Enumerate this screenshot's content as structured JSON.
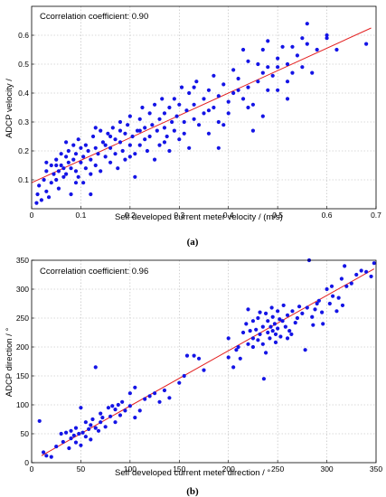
{
  "colors": {
    "points": "#1414e6",
    "fit_line": "#e32020",
    "grid": "#b5b5b5"
  },
  "chart_data": [
    {
      "type": "scatter",
      "panel_label": "(a)",
      "annotation": "Ccorrelation coefficient",
      "annotation_value": ": 0.90",
      "xlabel": "Self developed current meter velocity / (m/s)",
      "ylabel": "ADCP velocity  /",
      "xlim": [
        0,
        0.7
      ],
      "ylim": [
        0,
        0.7
      ],
      "xticks": [
        0,
        0.1,
        0.2,
        0.3,
        0.4,
        0.5,
        0.6,
        0.7
      ],
      "yticks": [
        0.1,
        0.2,
        0.3,
        0.4,
        0.5,
        0.6
      ],
      "xtick_labels": [
        "0",
        "0.1",
        "0.2",
        "0.3",
        "0.4",
        "0.5",
        "0.6",
        "0.7"
      ],
      "ytick_labels": [
        "0.1",
        "0.2",
        "0.3",
        "0.4",
        "0.5",
        "0.6"
      ],
      "grid": true,
      "fit_line": {
        "x": [
          0.0,
          0.69
        ],
        "y": [
          0.09,
          0.625
        ]
      },
      "points": [
        [
          0.01,
          0.02
        ],
        [
          0.012,
          0.05
        ],
        [
          0.015,
          0.08
        ],
        [
          0.02,
          0.03
        ],
        [
          0.025,
          0.1
        ],
        [
          0.03,
          0.06
        ],
        [
          0.03,
          0.13
        ],
        [
          0.035,
          0.04
        ],
        [
          0.04,
          0.09
        ],
        [
          0.04,
          0.15
        ],
        [
          0.045,
          0.12
        ],
        [
          0.05,
          0.1
        ],
        [
          0.05,
          0.17
        ],
        [
          0.055,
          0.13
        ],
        [
          0.055,
          0.07
        ],
        [
          0.06,
          0.15
        ],
        [
          0.06,
          0.19
        ],
        [
          0.065,
          0.11
        ],
        [
          0.065,
          0.14
        ],
        [
          0.07,
          0.18
        ],
        [
          0.07,
          0.12
        ],
        [
          0.075,
          0.16
        ],
        [
          0.075,
          0.2
        ],
        [
          0.08,
          0.05
        ],
        [
          0.08,
          0.14
        ],
        [
          0.085,
          0.22
        ],
        [
          0.085,
          0.17
        ],
        [
          0.09,
          0.13
        ],
        [
          0.09,
          0.19
        ],
        [
          0.095,
          0.11
        ],
        [
          0.095,
          0.24
        ],
        [
          0.1,
          0.16
        ],
        [
          0.1,
          0.21
        ],
        [
          0.105,
          0.09
        ],
        [
          0.105,
          0.18
        ],
        [
          0.11,
          0.14
        ],
        [
          0.11,
          0.22
        ],
        [
          0.115,
          0.2
        ],
        [
          0.12,
          0.12
        ],
        [
          0.12,
          0.17
        ],
        [
          0.125,
          0.25
        ],
        [
          0.13,
          0.15
        ],
        [
          0.13,
          0.21
        ],
        [
          0.135,
          0.19
        ],
        [
          0.14,
          0.27
        ],
        [
          0.14,
          0.13
        ],
        [
          0.145,
          0.23
        ],
        [
          0.15,
          0.18
        ],
        [
          0.15,
          0.22
        ],
        [
          0.155,
          0.26
        ],
        [
          0.16,
          0.16
        ],
        [
          0.16,
          0.21
        ],
        [
          0.165,
          0.28
        ],
        [
          0.17,
          0.19
        ],
        [
          0.17,
          0.24
        ],
        [
          0.175,
          0.14
        ],
        [
          0.18,
          0.23
        ],
        [
          0.18,
          0.3
        ],
        [
          0.185,
          0.2
        ],
        [
          0.19,
          0.26
        ],
        [
          0.19,
          0.17
        ],
        [
          0.195,
          0.29
        ],
        [
          0.2,
          0.22
        ],
        [
          0.2,
          0.32
        ],
        [
          0.205,
          0.25
        ],
        [
          0.21,
          0.11
        ],
        [
          0.21,
          0.19
        ],
        [
          0.215,
          0.27
        ],
        [
          0.22,
          0.31
        ],
        [
          0.22,
          0.22
        ],
        [
          0.225,
          0.35
        ],
        [
          0.23,
          0.24
        ],
        [
          0.23,
          0.28
        ],
        [
          0.235,
          0.2
        ],
        [
          0.24,
          0.33
        ],
        [
          0.24,
          0.25
        ],
        [
          0.245,
          0.29
        ],
        [
          0.25,
          0.17
        ],
        [
          0.25,
          0.36
        ],
        [
          0.255,
          0.27
        ],
        [
          0.26,
          0.31
        ],
        [
          0.26,
          0.22
        ],
        [
          0.265,
          0.38
        ],
        [
          0.27,
          0.28
        ],
        [
          0.27,
          0.33
        ],
        [
          0.275,
          0.25
        ],
        [
          0.28,
          0.35
        ],
        [
          0.28,
          0.2
        ],
        [
          0.285,
          0.3
        ],
        [
          0.29,
          0.27
        ],
        [
          0.29,
          0.38
        ],
        [
          0.295,
          0.32
        ],
        [
          0.3,
          0.24
        ],
        [
          0.3,
          0.36
        ],
        [
          0.305,
          0.42
        ],
        [
          0.31,
          0.3
        ],
        [
          0.31,
          0.26
        ],
        [
          0.315,
          0.34
        ],
        [
          0.32,
          0.21
        ],
        [
          0.32,
          0.4
        ],
        [
          0.33,
          0.31
        ],
        [
          0.33,
          0.36
        ],
        [
          0.335,
          0.44
        ],
        [
          0.34,
          0.29
        ],
        [
          0.35,
          0.38
        ],
        [
          0.35,
          0.33
        ],
        [
          0.36,
          0.41
        ],
        [
          0.36,
          0.26
        ],
        [
          0.37,
          0.35
        ],
        [
          0.37,
          0.46
        ],
        [
          0.38,
          0.3
        ],
        [
          0.38,
          0.39
        ],
        [
          0.39,
          0.43
        ],
        [
          0.39,
          0.29
        ],
        [
          0.4,
          0.37
        ],
        [
          0.4,
          0.33
        ],
        [
          0.41,
          0.48
        ],
        [
          0.41,
          0.4
        ],
        [
          0.42,
          0.45
        ],
        [
          0.43,
          0.38
        ],
        [
          0.44,
          0.51
        ],
        [
          0.44,
          0.42
        ],
        [
          0.45,
          0.36
        ],
        [
          0.46,
          0.5
        ],
        [
          0.46,
          0.44
        ],
        [
          0.47,
          0.55
        ],
        [
          0.47,
          0.47
        ],
        [
          0.48,
          0.41
        ],
        [
          0.48,
          0.58
        ],
        [
          0.49,
          0.46
        ],
        [
          0.5,
          0.52
        ],
        [
          0.5,
          0.49
        ],
        [
          0.51,
          0.56
        ],
        [
          0.52,
          0.44
        ],
        [
          0.52,
          0.5
        ],
        [
          0.53,
          0.56
        ],
        [
          0.54,
          0.53
        ],
        [
          0.55,
          0.49
        ],
        [
          0.56,
          0.64
        ],
        [
          0.56,
          0.57
        ],
        [
          0.58,
          0.55
        ],
        [
          0.6,
          0.59
        ],
        [
          0.68,
          0.57
        ],
        [
          0.38,
          0.21
        ],
        [
          0.45,
          0.27
        ],
        [
          0.47,
          0.32
        ],
        [
          0.5,
          0.41
        ],
        [
          0.52,
          0.38
        ],
        [
          0.6,
          0.6
        ],
        [
          0.12,
          0.05
        ],
        [
          0.05,
          0.15
        ],
        [
          0.03,
          0.16
        ],
        [
          0.07,
          0.23
        ],
        [
          0.09,
          0.09
        ],
        [
          0.13,
          0.28
        ],
        [
          0.16,
          0.25
        ],
        [
          0.18,
          0.27
        ],
        [
          0.2,
          0.18
        ],
        [
          0.22,
          0.27
        ],
        [
          0.27,
          0.23
        ],
        [
          0.33,
          0.42
        ],
        [
          0.36,
          0.34
        ],
        [
          0.42,
          0.41
        ],
        [
          0.44,
          0.35
        ],
        [
          0.48,
          0.49
        ],
        [
          0.53,
          0.47
        ],
        [
          0.55,
          0.59
        ],
        [
          0.43,
          0.55
        ],
        [
          0.57,
          0.47
        ],
        [
          0.62,
          0.55
        ]
      ]
    },
    {
      "type": "scatter",
      "panel_label": "(b)",
      "annotation": "Ccorrelation coefficient",
      "annotation_value": ": 0.96",
      "xlabel": "Self developed current meter direction / °",
      "ylabel": "ADCP direction / °",
      "xlim": [
        0,
        350
      ],
      "ylim": [
        0,
        350
      ],
      "xticks": [
        0,
        50,
        100,
        150,
        200,
        250,
        300,
        350
      ],
      "yticks": [
        0,
        50,
        100,
        150,
        200,
        250,
        300,
        350
      ],
      "xtick_labels": [
        "0",
        "50",
        "100",
        "150",
        "200",
        "250",
        "300",
        "350"
      ],
      "ytick_labels": [
        "0",
        "50",
        "100",
        "150",
        "200",
        "250",
        "300",
        "350"
      ],
      "grid": true,
      "fit_line": {
        "x": [
          10,
          348
        ],
        "y": [
          12,
          335
        ]
      },
      "points": [
        [
          8,
          72
        ],
        [
          12,
          18
        ],
        [
          15,
          12
        ],
        [
          20,
          10
        ],
        [
          25,
          28
        ],
        [
          30,
          50
        ],
        [
          32,
          36
        ],
        [
          35,
          52
        ],
        [
          38,
          25
        ],
        [
          40,
          55
        ],
        [
          40,
          42
        ],
        [
          43,
          47
        ],
        [
          45,
          35
        ],
        [
          45,
          60
        ],
        [
          48,
          50
        ],
        [
          50,
          30
        ],
        [
          50,
          95
        ],
        [
          52,
          52
        ],
        [
          55,
          45
        ],
        [
          55,
          70
        ],
        [
          58,
          58
        ],
        [
          60,
          65
        ],
        [
          60,
          40
        ],
        [
          62,
          75
        ],
        [
          65,
          60
        ],
        [
          65,
          165
        ],
        [
          68,
          55
        ],
        [
          70,
          70
        ],
        [
          70,
          85
        ],
        [
          72,
          78
        ],
        [
          75,
          62
        ],
        [
          78,
          95
        ],
        [
          80,
          80
        ],
        [
          82,
          98
        ],
        [
          85,
          92
        ],
        [
          85,
          70
        ],
        [
          88,
          100
        ],
        [
          90,
          82
        ],
        [
          92,
          105
        ],
        [
          95,
          90
        ],
        [
          100,
          98
        ],
        [
          100,
          120
        ],
        [
          105,
          130
        ],
        [
          105,
          78
        ],
        [
          110,
          90
        ],
        [
          115,
          110
        ],
        [
          120,
          115
        ],
        [
          125,
          120
        ],
        [
          130,
          105
        ],
        [
          135,
          125
        ],
        [
          140,
          112
        ],
        [
          150,
          138
        ],
        [
          155,
          150
        ],
        [
          158,
          185
        ],
        [
          165,
          185
        ],
        [
          170,
          180
        ],
        [
          175,
          160
        ],
        [
          200,
          215
        ],
        [
          200,
          182
        ],
        [
          205,
          165
        ],
        [
          208,
          195
        ],
        [
          210,
          200
        ],
        [
          212,
          180
        ],
        [
          215,
          225
        ],
        [
          218,
          240
        ],
        [
          220,
          205
        ],
        [
          220,
          265
        ],
        [
          222,
          228
        ],
        [
          225,
          215
        ],
        [
          225,
          245
        ],
        [
          228,
          230
        ],
        [
          230,
          212
        ],
        [
          230,
          250
        ],
        [
          232,
          222
        ],
        [
          235,
          205
        ],
        [
          235,
          235
        ],
        [
          238,
          258
        ],
        [
          240,
          225
        ],
        [
          240,
          245
        ],
        [
          242,
          215
        ],
        [
          243,
          235
        ],
        [
          245,
          228
        ],
        [
          245,
          252
        ],
        [
          247,
          240
        ],
        [
          248,
          222
        ],
        [
          250,
          232
        ],
        [
          250,
          262
        ],
        [
          252,
          248
        ],
        [
          253,
          218
        ],
        [
          255,
          245
        ],
        [
          258,
          235
        ],
        [
          260,
          255
        ],
        [
          262,
          228
        ],
        [
          265,
          262
        ],
        [
          268,
          242
        ],
        [
          270,
          250
        ],
        [
          272,
          270
        ],
        [
          275,
          258
        ],
        [
          278,
          195
        ],
        [
          280,
          268
        ],
        [
          282,
          350
        ],
        [
          285,
          252
        ],
        [
          288,
          265
        ],
        [
          290,
          275
        ],
        [
          292,
          280
        ],
        [
          295,
          260
        ],
        [
          300,
          300
        ],
        [
          303,
          275
        ],
        [
          305,
          305
        ],
        [
          310,
          262
        ],
        [
          312,
          285
        ],
        [
          315,
          318
        ],
        [
          318,
          340
        ],
        [
          320,
          305
        ],
        [
          325,
          310
        ],
        [
          330,
          325
        ],
        [
          335,
          332
        ],
        [
          340,
          330
        ],
        [
          345,
          322
        ],
        [
          348,
          345
        ],
        [
          225,
          200
        ],
        [
          232,
          260
        ],
        [
          238,
          190
        ],
        [
          244,
          268
        ],
        [
          248,
          208
        ],
        [
          256,
          272
        ],
        [
          264,
          222
        ],
        [
          236,
          145
        ],
        [
          260,
          215
        ],
        [
          286,
          238
        ],
        [
          296,
          240
        ],
        [
          306,
          288
        ],
        [
          316,
          272
        ]
      ]
    }
  ]
}
